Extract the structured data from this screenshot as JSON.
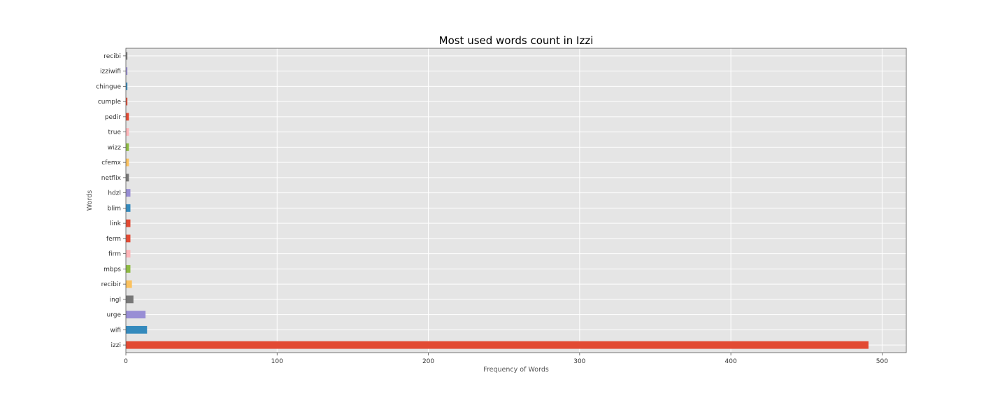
{
  "chart_data": {
    "type": "bar",
    "orientation": "horizontal",
    "title": "Most used words count in Izzi",
    "xlabel": "Frequency of Words",
    "ylabel": "Words",
    "categories": [
      "izzi",
      "wifi",
      "urge",
      "ingl",
      "recibir",
      "mbps",
      "firm",
      "ferm",
      "link",
      "blim",
      "hdzl",
      "netflix",
      "cfemx",
      "wizz",
      "true",
      "pedir",
      "cumple",
      "chingue",
      "izziwifi",
      "recibi"
    ],
    "values": [
      491,
      14,
      13,
      5,
      4,
      3,
      3,
      3,
      3,
      3,
      3,
      2,
      2,
      2,
      2,
      2,
      1,
      1,
      1,
      1
    ],
    "colors": [
      "#E24A33",
      "#348ABD",
      "#988ED5",
      "#777777",
      "#FBC15E",
      "#8EBA42",
      "#FFB5B8",
      "#E24A33",
      "#E24A33",
      "#348ABD",
      "#988ED5",
      "#777777",
      "#FBC15E",
      "#8EBA42",
      "#FFB5B8",
      "#E24A33",
      "#E24A33",
      "#348ABD",
      "#988ED5",
      "#777777"
    ],
    "xticks": [
      0,
      100,
      200,
      300,
      400,
      500
    ],
    "xlim": [
      0,
      516
    ],
    "grid": true,
    "style": {
      "background": "#E5E5E5",
      "grid_color": "#FFFFFF",
      "spine_color": "#555555"
    }
  }
}
